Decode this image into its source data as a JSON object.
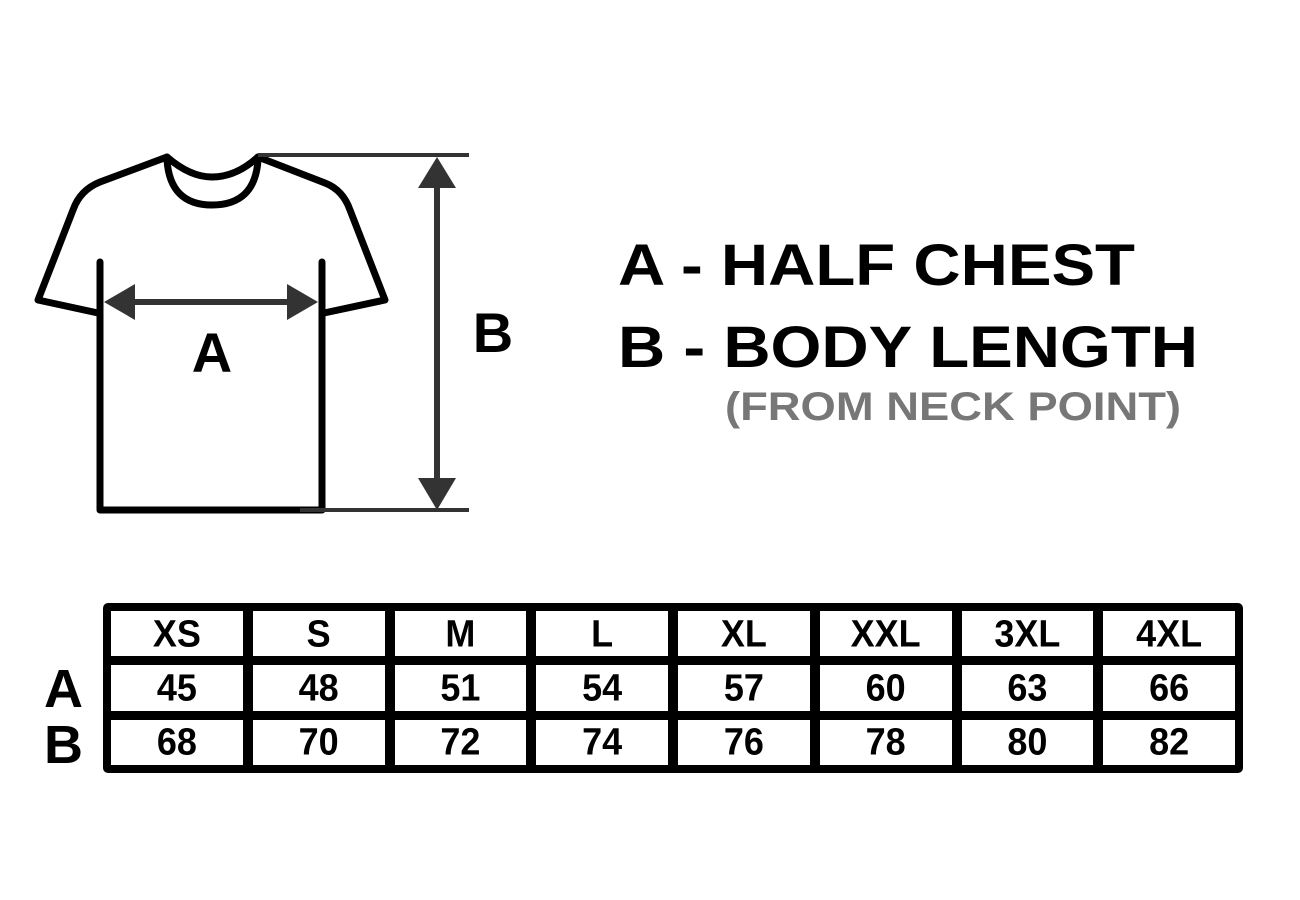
{
  "diagram": {
    "label_a": "A",
    "label_b": "B",
    "outline_color": "#000000",
    "arrow_color": "#333333"
  },
  "legend": {
    "line_a": "A - HALF CHEST",
    "line_b": "B - BODY LENGTH",
    "note": "(FROM NECK POINT)",
    "note_color": "#777777"
  },
  "table": {
    "sizes": [
      "XS",
      "S",
      "M",
      "L",
      "XL",
      "XXL",
      "3XL",
      "4XL"
    ],
    "rows": [
      {
        "label": "A",
        "values": [
          "45",
          "48",
          "51",
          "54",
          "57",
          "60",
          "63",
          "66"
        ]
      },
      {
        "label": "B",
        "values": [
          "68",
          "70",
          "72",
          "74",
          "76",
          "78",
          "80",
          "82"
        ]
      }
    ]
  }
}
